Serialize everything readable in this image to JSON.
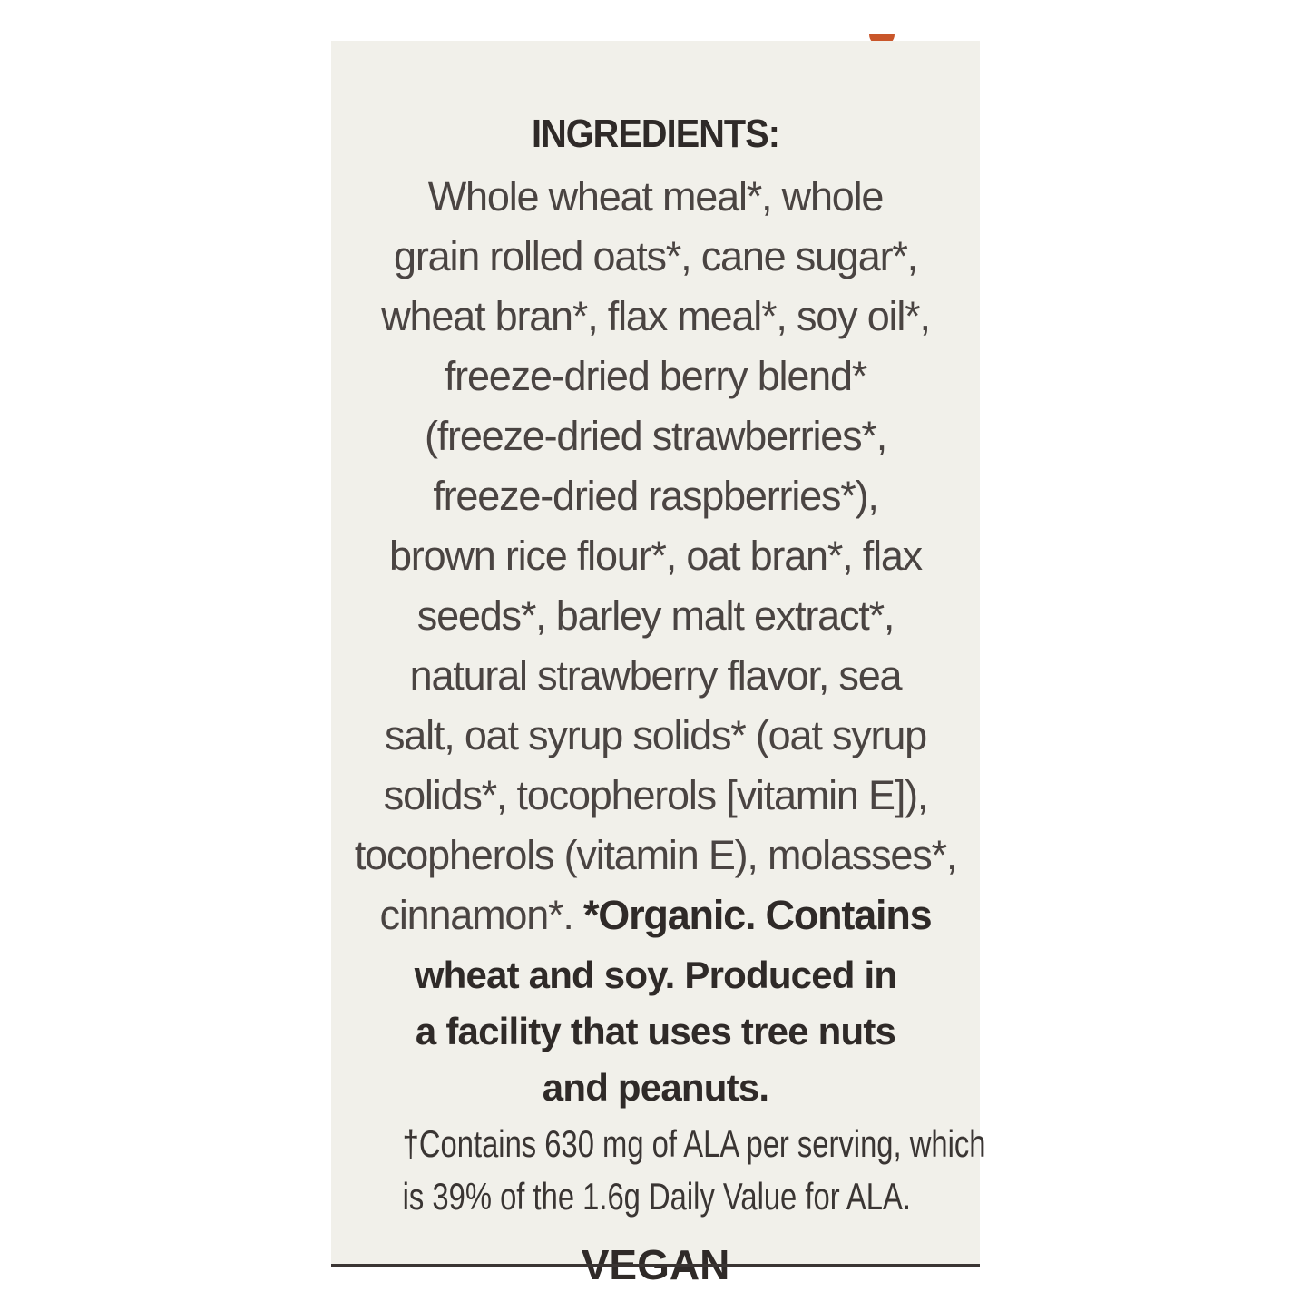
{
  "label": {
    "title": "INGREDIENTS:",
    "ingredient_lines": [
      "Whole wheat meal*, whole",
      "grain rolled oats*, cane sugar*,",
      "wheat bran*, flax meal*, soy oil*,",
      "freeze-dried berry blend*",
      "(freeze-dried strawberries*,",
      "freeze-dried raspberries*),",
      "brown rice flour*, oat bran*, flax",
      "seeds*, barley malt extract*,",
      "natural strawberry flavor, sea",
      "salt, oat syrup solids* (oat syrup",
      "solids*, tocopherols [vitamin E]),",
      "tocopherols (vitamin E), molasses*,"
    ],
    "last_ingredient": "cinnamon*.",
    "allergen_lines": [
      "*Organic. Contains",
      "wheat and soy. Produced in",
      "a facility that uses tree nuts",
      "and peanuts."
    ],
    "footnote_lines": [
      "†Contains 630 mg of ALA per serving, which",
      "is 39% of the 1.6g Daily Value for ALA."
    ],
    "badge": "VEGAN"
  },
  "colors": {
    "background": "#f1f0ea",
    "text": "#4a4442",
    "bold_text": "#2f2a28",
    "accent": "#c9562a"
  }
}
